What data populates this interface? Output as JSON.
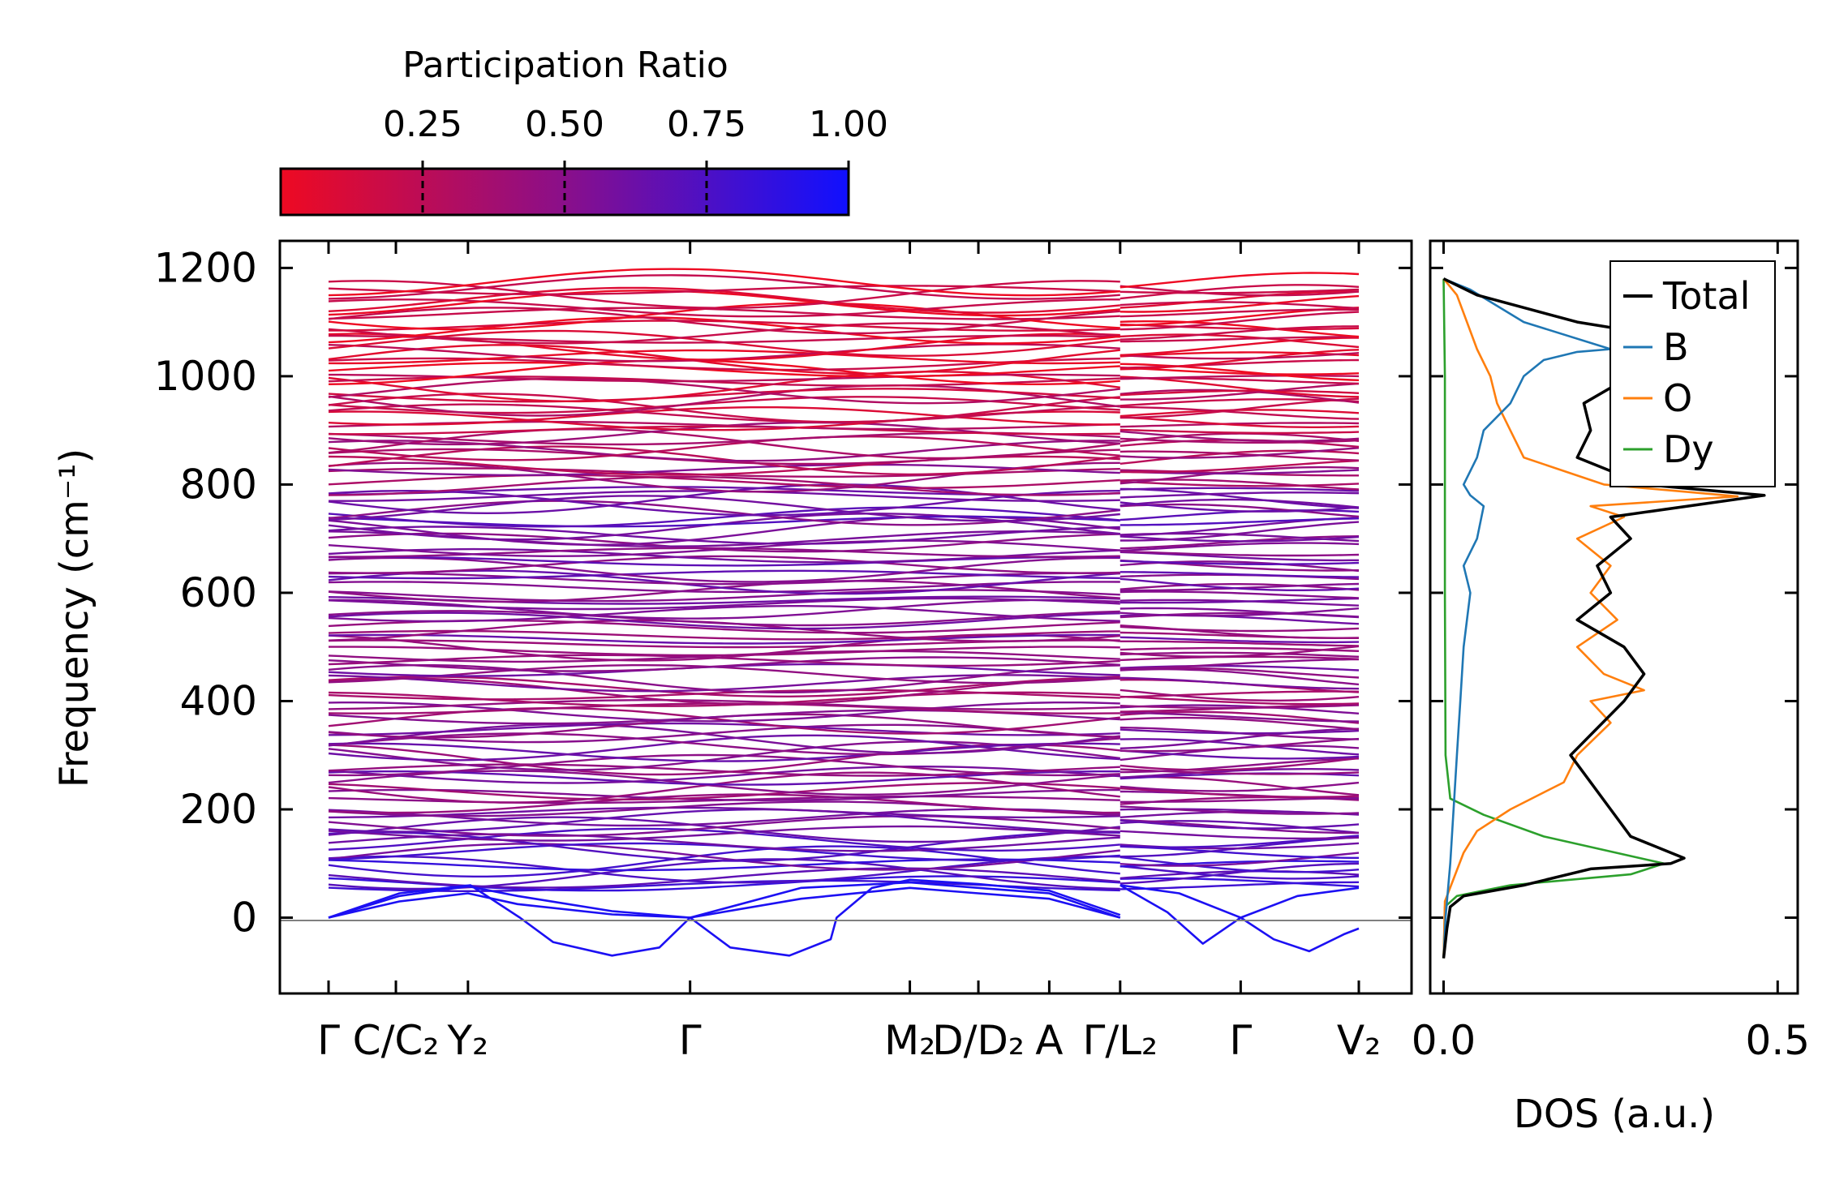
{
  "colorbar": {
    "title": "Participation Ratio",
    "ticks": [
      "0.25",
      "0.50",
      "0.75",
      "1.00"
    ],
    "tick_values": [
      0.25,
      0.5,
      0.75,
      1.0
    ],
    "range": [
      0.0,
      1.0
    ],
    "color_low": "#ee0a22",
    "color_mid": "#8a0f8a",
    "color_high": "#1010ff"
  },
  "chart_data": [
    {
      "type": "line",
      "title": "",
      "xlabel": "",
      "ylabel": "Frequency (cm⁻¹)",
      "ylim": [
        -140,
        1250
      ],
      "y_ticks": [
        0,
        200,
        400,
        600,
        800,
        1000,
        1200
      ],
      "y_tick_labels": [
        "0",
        "200",
        "400",
        "600",
        "800",
        "1000",
        "1200"
      ],
      "x_ticks": [
        {
          "label": "Γ"
        },
        {
          "label": "C/C₂"
        },
        {
          "label": "Y₂"
        },
        {
          "label": "Γ"
        },
        {
          "label": "M₂"
        },
        {
          "label": "D/D₂"
        },
        {
          "label": "A"
        },
        {
          "label": "Γ/L₂"
        },
        {
          "label": "Γ"
        },
        {
          "label": "V₂"
        }
      ],
      "x_tick_positions": [
        0,
        0.57,
        1.18,
        3.06,
        4.92,
        5.5,
        6.1,
        6.7,
        7.72,
        8.72
      ],
      "segment_break_x": 6.7,
      "acoustic_branches": [
        {
          "name": "acoustic-1",
          "x": [
            0,
            0.6,
            1.18,
            1.6,
            2.4,
            3.06,
            4.0,
            4.92,
            5.5,
            6.1,
            6.7
          ],
          "y": [
            0,
            40,
            58,
            40,
            12,
            0,
            35,
            55,
            45,
            35,
            0
          ]
        },
        {
          "name": "acoustic-2",
          "x": [
            0,
            0.6,
            1.18,
            1.6,
            2.4,
            3.06,
            4.0,
            4.92,
            5.5,
            6.1,
            6.7
          ],
          "y": [
            0,
            30,
            45,
            25,
            6,
            0,
            55,
            65,
            55,
            45,
            0
          ]
        },
        {
          "name": "acoustic-3",
          "x": [
            0,
            0.6,
            1.2,
            1.62,
            1.9,
            2.4,
            2.8,
            3.06,
            3.4,
            3.9,
            4.25,
            4.3,
            4.6,
            4.92,
            5.5,
            6.1,
            6.7
          ],
          "y": [
            0,
            45,
            60,
            0,
            -45,
            -70,
            -55,
            0,
            -55,
            -70,
            -40,
            0,
            55,
            70,
            62,
            50,
            5
          ]
        },
        {
          "name": "acoustic-4",
          "x": [
            6.7,
            7.1,
            7.4,
            7.72,
            8.0,
            8.3,
            8.6,
            8.72
          ],
          "y": [
            60,
            10,
            -48,
            0,
            -40,
            -62,
            -30,
            -20
          ]
        },
        {
          "name": "acoustic-5",
          "x": [
            6.7,
            7.2,
            7.72,
            8.2,
            8.72
          ],
          "y": [
            60,
            45,
            0,
            40,
            55
          ]
        }
      ],
      "band_count": 140,
      "band_range": [
        55,
        1180
      ],
      "pr_by_frequency": [
        {
          "freq": 50,
          "pr": 0.85
        },
        {
          "freq": 120,
          "pr": 0.65
        },
        {
          "freq": 200,
          "pr": 0.55
        },
        {
          "freq": 400,
          "pr": 0.45
        },
        {
          "freq": 600,
          "pr": 0.62
        },
        {
          "freq": 750,
          "pr": 0.6
        },
        {
          "freq": 850,
          "pr": 0.35
        },
        {
          "freq": 1000,
          "pr": 0.12
        },
        {
          "freq": 1180,
          "pr": 0.1
        }
      ]
    },
    {
      "type": "line",
      "title": "",
      "xlabel": "DOS (a.u.)",
      "ylabel": "",
      "xlim": [
        -0.02,
        0.53
      ],
      "ylim": [
        -140,
        1250
      ],
      "x_ticks": [
        0.0,
        0.5
      ],
      "x_tick_labels": [
        "0.0",
        "0.5"
      ],
      "legend_position": "top-right",
      "series": [
        {
          "name": "Total",
          "color": "#000000",
          "x": [
            0.0,
            0.005,
            0.01,
            0.03,
            0.12,
            0.22,
            0.34,
            0.36,
            0.28,
            0.25,
            0.22,
            0.19,
            0.23,
            0.27,
            0.3,
            0.27,
            0.2,
            0.25,
            0.23,
            0.28,
            0.25,
            0.48,
            0.3,
            0.2,
            0.22,
            0.21,
            0.28,
            0.33,
            0.45,
            0.2,
            0.05,
            0.0
          ],
          "y": [
            -75,
            -20,
            20,
            40,
            60,
            90,
            100,
            110,
            150,
            200,
            250,
            300,
            350,
            400,
            450,
            500,
            550,
            600,
            650,
            700,
            740,
            780,
            800,
            850,
            900,
            950,
            1000,
            1030,
            1050,
            1100,
            1150,
            1180
          ]
        },
        {
          "name": "B",
          "color": "#1f77b4",
          "x": [
            0.0,
            0.003,
            0.01,
            0.015,
            0.02,
            0.025,
            0.03,
            0.035,
            0.04,
            0.03,
            0.05,
            0.06,
            0.04,
            0.03,
            0.05,
            0.06,
            0.1,
            0.12,
            0.15,
            0.2,
            0.25,
            0.12,
            0.04,
            0.0
          ],
          "y": [
            -75,
            0,
            100,
            200,
            300,
            400,
            500,
            550,
            600,
            650,
            700,
            760,
            780,
            800,
            850,
            900,
            950,
            1000,
            1030,
            1045,
            1050,
            1100,
            1160,
            1180
          ]
        },
        {
          "name": "O",
          "color": "#ff7f0e",
          "x": [
            0.0,
            0.002,
            0.03,
            0.05,
            0.1,
            0.18,
            0.2,
            0.25,
            0.22,
            0.3,
            0.24,
            0.2,
            0.26,
            0.22,
            0.25,
            0.2,
            0.27,
            0.22,
            0.44,
            0.24,
            0.12,
            0.1,
            0.08,
            0.07,
            0.05,
            0.02,
            0.0
          ],
          "y": [
            -75,
            30,
            120,
            160,
            200,
            250,
            300,
            360,
            400,
            420,
            450,
            500,
            550,
            600,
            650,
            700,
            740,
            760,
            778,
            800,
            850,
            900,
            950,
            1000,
            1050,
            1150,
            1180
          ]
        },
        {
          "name": "Dy",
          "color": "#2ca02c",
          "x": [
            0.0,
            0.002,
            0.02,
            0.1,
            0.28,
            0.33,
            0.15,
            0.06,
            0.01,
            0.003,
            0.002,
            0.002,
            0.0
          ],
          "y": [
            -75,
            20,
            40,
            60,
            80,
            100,
            150,
            190,
            220,
            300,
            600,
            1000,
            1180
          ]
        }
      ]
    }
  ]
}
